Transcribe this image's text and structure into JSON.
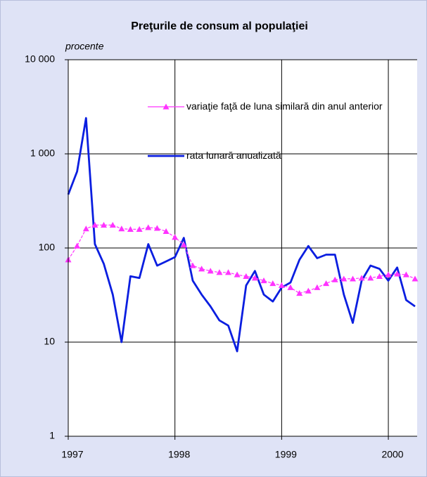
{
  "chart_data": {
    "type": "line",
    "title": "Preţurile de consum al populaţiei",
    "y_label": "procente",
    "log_scale_y": true,
    "grid": true,
    "xlim": [
      1997,
      2000.27
    ],
    "xticks": [
      1997,
      1998,
      1999,
      2000
    ],
    "ylim": [
      1,
      10000
    ],
    "yticks": [
      1,
      10,
      100,
      {
        "value": 1000,
        "label": "1 000"
      },
      {
        "value": 10000,
        "label": "10 000"
      }
    ],
    "x": [
      1997.0,
      1997.083,
      1997.167,
      1997.25,
      1997.333,
      1997.417,
      1997.5,
      1997.583,
      1997.667,
      1997.75,
      1997.833,
      1997.917,
      1998.0,
      1998.083,
      1998.167,
      1998.25,
      1998.333,
      1998.417,
      1998.5,
      1998.583,
      1998.667,
      1998.75,
      1998.833,
      1998.917,
      1999.0,
      1999.083,
      1999.167,
      1999.25,
      1999.333,
      1999.417,
      1999.5,
      1999.583,
      1999.667,
      1999.75,
      1999.833,
      1999.917,
      2000.0,
      2000.083,
      2000.167,
      2000.25
    ],
    "series": [
      {
        "name": "variaţie faţă de luna similară din anul anterior",
        "color": "#ff33ff",
        "marker": "triangle",
        "values": [
          75,
          105,
          160,
          175,
          175,
          175,
          160,
          158,
          158,
          165,
          162,
          150,
          130,
          108,
          65,
          60,
          57,
          55,
          55,
          52,
          50,
          48,
          45,
          42,
          40,
          38,
          33,
          35,
          38,
          42,
          46,
          47,
          47,
          48,
          48,
          50,
          52,
          53,
          52,
          47
        ]
      },
      {
        "name": "rata lunară anualizată",
        "color": "#0a1ee0",
        "values": [
          370,
          650,
          2400,
          110,
          68,
          32,
          10,
          50,
          48,
          110,
          65,
          72,
          80,
          128,
          45,
          32,
          24,
          17,
          15,
          8,
          40,
          57,
          32,
          27,
          38,
          43,
          75,
          105,
          78,
          85,
          85,
          32,
          16,
          45,
          65,
          60,
          45,
          62,
          28,
          24
        ]
      }
    ]
  }
}
